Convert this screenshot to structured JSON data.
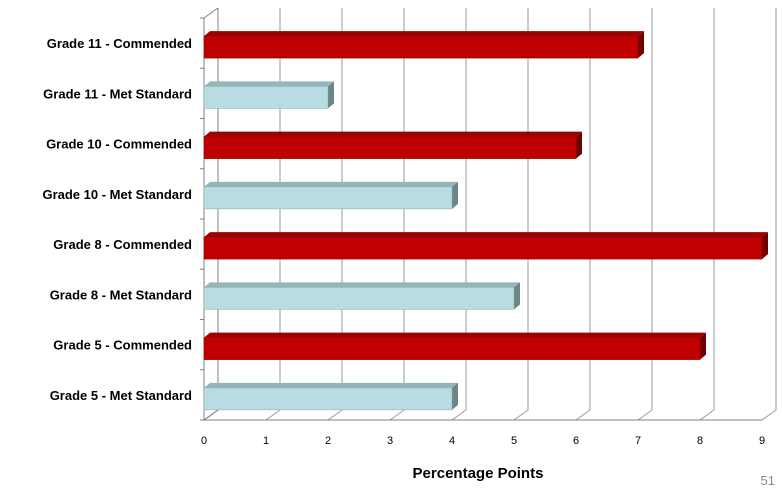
{
  "chart_data": {
    "type": "bar",
    "orientation": "horizontal",
    "categories": [
      "Grade 11 - Commended",
      "Grade 11 - Met Standard",
      "Grade 10 - Commended",
      "Grade 10 - Met Standard",
      "Grade 8 - Commended",
      "Grade 8 - Met Standard",
      "Grade 5 - Commended",
      "Grade 5 - Met Standard"
    ],
    "values": [
      7,
      2,
      6,
      4,
      9,
      5,
      8,
      4
    ],
    "bar_colors": [
      "#c00000",
      "#b7dde3",
      "#c00000",
      "#b7dde3",
      "#c00000",
      "#b7dde3",
      "#c00000",
      "#b7dde3"
    ],
    "xlabel": "Percentage Points",
    "ylabel": "",
    "xlim": [
      0,
      9
    ],
    "xticks": [
      "0",
      "1",
      "2",
      "3",
      "4",
      "5",
      "6",
      "7",
      "8",
      "9"
    ],
    "grid": true,
    "legend": "none"
  },
  "page_number": "51"
}
